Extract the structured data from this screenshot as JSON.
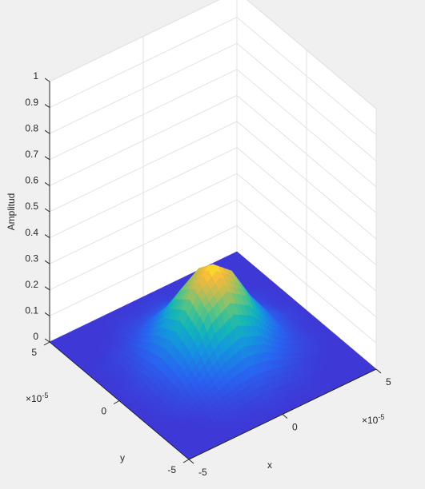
{
  "chart_data": {
    "type": "surface3d",
    "xlabel": "x",
    "ylabel": "y",
    "zlabel": "Amplitud",
    "x_scale_label": "×10",
    "x_scale_exponent": "-5",
    "y_scale_label": "×10",
    "y_scale_exponent": "-5",
    "x": [
      -5,
      -4,
      -3,
      -2,
      -1,
      0,
      1,
      2,
      3,
      4,
      5
    ],
    "y": [
      -5,
      -4,
      -3,
      -2,
      -1,
      0,
      1,
      2,
      3,
      4,
      5
    ],
    "z": [
      [
        0,
        0,
        0,
        0,
        0,
        0,
        0,
        0,
        0,
        0,
        0
      ],
      [
        0,
        0,
        0,
        0.01,
        0.01,
        0.02,
        0.01,
        0.01,
        0,
        0,
        0
      ],
      [
        0,
        0,
        0.01,
        0.03,
        0.05,
        0.06,
        0.05,
        0.03,
        0.01,
        0,
        0
      ],
      [
        0,
        0.01,
        0.03,
        0.07,
        0.13,
        0.16,
        0.13,
        0.07,
        0.03,
        0.01,
        0
      ],
      [
        0,
        0.01,
        0.05,
        0.13,
        0.24,
        0.29,
        0.24,
        0.13,
        0.05,
        0.01,
        0
      ],
      [
        0,
        0.02,
        0.06,
        0.16,
        0.29,
        0.35,
        0.29,
        0.16,
        0.06,
        0.02,
        0
      ],
      [
        0,
        0.01,
        0.05,
        0.13,
        0.24,
        0.29,
        0.24,
        0.13,
        0.05,
        0.01,
        0
      ],
      [
        0,
        0.01,
        0.03,
        0.07,
        0.13,
        0.16,
        0.13,
        0.07,
        0.03,
        0.01,
        0
      ],
      [
        0,
        0,
        0.01,
        0.03,
        0.05,
        0.06,
        0.05,
        0.03,
        0.01,
        0,
        0
      ],
      [
        0,
        0,
        0,
        0.01,
        0.01,
        0.02,
        0.01,
        0.01,
        0,
        0,
        0
      ],
      [
        0,
        0,
        0,
        0,
        0,
        0,
        0,
        0,
        0,
        0,
        0
      ]
    ],
    "colormap": "parula",
    "xlim": [
      -5,
      5
    ],
    "ylim": [
      -5,
      5
    ],
    "zlim": [
      0,
      1
    ],
    "xticks": [
      -5,
      0,
      5
    ],
    "yticks": [
      -5,
      0,
      5
    ],
    "zticks": [
      0,
      0.1,
      0.2,
      0.3,
      0.4,
      0.5,
      0.6,
      0.7,
      0.8,
      0.9,
      1
    ],
    "grid": true
  }
}
